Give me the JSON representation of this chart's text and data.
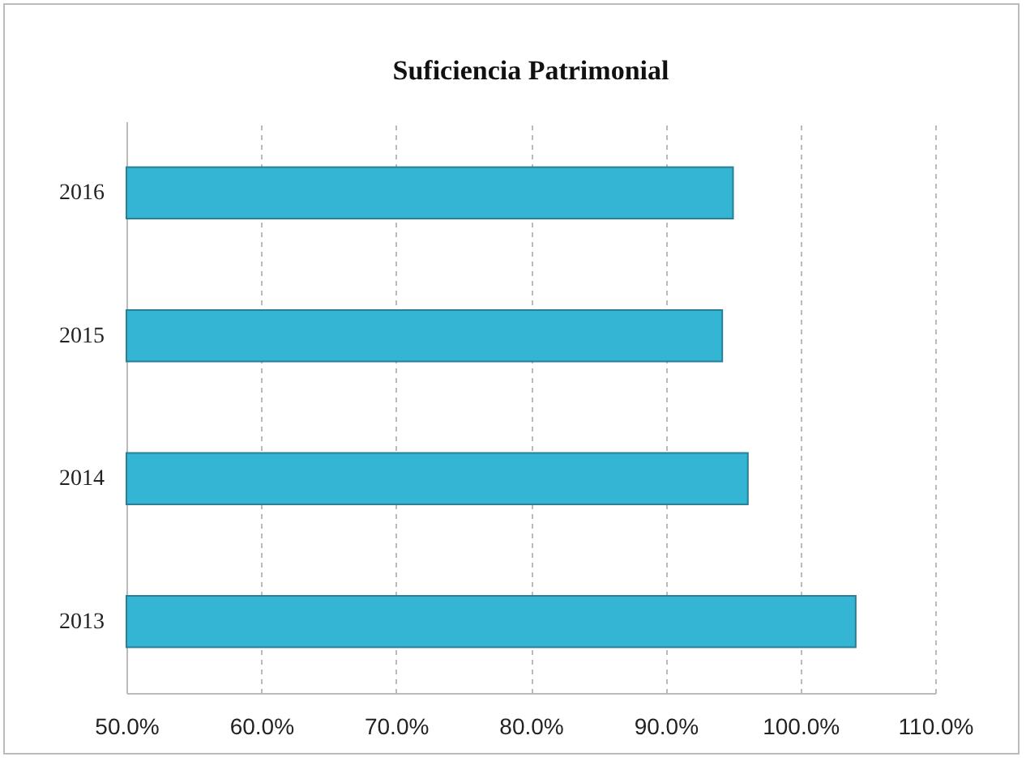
{
  "chart_data": {
    "type": "bar",
    "orientation": "horizontal",
    "title": "Suficiencia Patrimonial",
    "categories": [
      "2016",
      "2015",
      "2014",
      "2013"
    ],
    "values": [
      95.0,
      94.2,
      96.1,
      104.1
    ],
    "color": "#35b5d4",
    "xlim": [
      50,
      110
    ],
    "xticks": [
      {
        "value": 50,
        "label": "50.0%"
      },
      {
        "value": 60,
        "label": "60.0%"
      },
      {
        "value": 70,
        "label": "70.0%"
      },
      {
        "value": 80,
        "label": "80.0%"
      },
      {
        "value": 90,
        "label": "90.0%"
      },
      {
        "value": 100,
        "label": "100.0%"
      },
      {
        "value": 110,
        "label": "110.0%"
      }
    ],
    "grid": "x"
  }
}
